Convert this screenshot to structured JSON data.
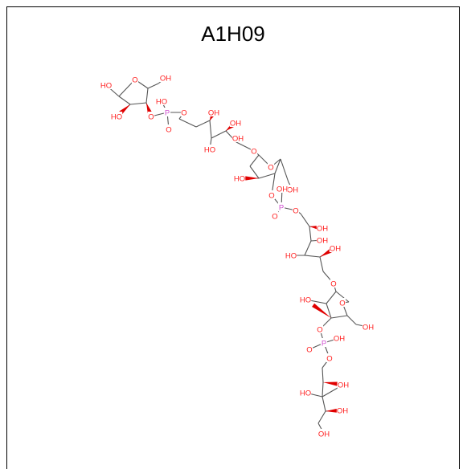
{
  "figure": {
    "title": "A1H09",
    "colors": {
      "oxygen": "#ff2020",
      "phosphorus": "#d050d0",
      "bond": "#555555",
      "atom_id": "#4caf50"
    },
    "atoms": [
      {
        "id": "h1",
        "label": "HO"
      },
      {
        "id": "o1",
        "label": "O"
      },
      {
        "id": "h2",
        "label": "OH"
      },
      {
        "id": "h3",
        "label": "HO"
      },
      {
        "id": "o2",
        "label": "O"
      },
      {
        "id": "p1",
        "label": "P"
      },
      {
        "id": "h4",
        "label": "HO"
      },
      {
        "id": "o3",
        "label": "O"
      },
      {
        "id": "o4",
        "label": "O"
      },
      {
        "id": "h5",
        "label": "OH"
      },
      {
        "id": "h6",
        "label": "OH"
      },
      {
        "id": "h7",
        "label": "HO"
      },
      {
        "id": "h8",
        "label": "OH"
      },
      {
        "id": "o5",
        "label": "O"
      },
      {
        "id": "o6",
        "label": "O"
      },
      {
        "id": "h9",
        "label": "HO"
      },
      {
        "id": "h10",
        "label": "OH"
      },
      {
        "id": "o7",
        "label": "O"
      },
      {
        "id": "h11",
        "label": "OH"
      },
      {
        "id": "p2",
        "label": "P"
      },
      {
        "id": "o8",
        "label": "O"
      },
      {
        "id": "o9",
        "label": "O"
      },
      {
        "id": "h12",
        "label": "OH"
      },
      {
        "id": "h13",
        "label": "OH"
      },
      {
        "id": "h14",
        "label": "HO"
      },
      {
        "id": "h15",
        "label": "OH"
      },
      {
        "id": "o10",
        "label": "O"
      },
      {
        "id": "h16",
        "label": "HO"
      },
      {
        "id": "o11",
        "label": "O"
      },
      {
        "id": "h17",
        "label": "OH"
      },
      {
        "id": "o12",
        "label": "O"
      },
      {
        "id": "p3",
        "label": "P"
      },
      {
        "id": "h18",
        "label": "OH"
      },
      {
        "id": "o13",
        "label": "O"
      },
      {
        "id": "o14",
        "label": "O"
      },
      {
        "id": "h19",
        "label": "OH"
      },
      {
        "id": "h20",
        "label": "HO"
      },
      {
        "id": "h21",
        "label": "OH"
      },
      {
        "id": "h22",
        "label": "OH"
      }
    ]
  }
}
